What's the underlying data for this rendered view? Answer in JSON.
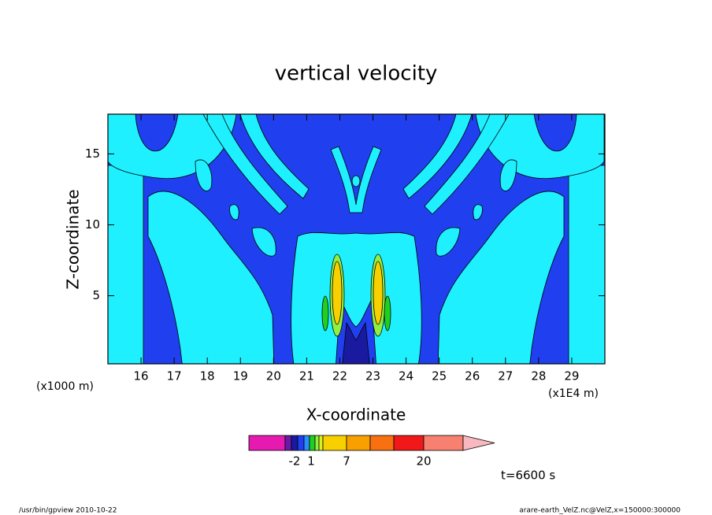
{
  "chart_data": {
    "type": "contour",
    "title": "vertical velocity",
    "xlabel": "X-coordinate",
    "ylabel": "Z-coordinate",
    "x_unit_left": "(x1000 m)",
    "x_unit_right": "(x1E4 m)",
    "xlim": [
      15,
      30
    ],
    "ylim": [
      0.2,
      17.8
    ],
    "xticks": [
      16,
      17,
      18,
      19,
      20,
      21,
      22,
      23,
      24,
      25,
      26,
      27,
      28,
      29
    ],
    "yticks": [
      5,
      10,
      15
    ],
    "colorbar": {
      "colors": [
        "#e61ab0",
        "#6a1aa8",
        "#1a1aa0",
        "#2040f0",
        "#2890f8",
        "#20d020",
        "#90f040",
        "#d8f020",
        "#f8d000",
        "#f8a000",
        "#f87010",
        "#f01818",
        "#f88070",
        "#f8b8c0"
      ],
      "ticks": [
        {
          "value": -2,
          "label": "-2"
        },
        1,
        7,
        20
      ]
    },
    "time_label": "t=6600 s",
    "footer_left": "/usr/bin/gpview  2010-10-22",
    "footer_right": "arare-earth_VelZ.nc@VelZ,x=150000:300000"
  }
}
